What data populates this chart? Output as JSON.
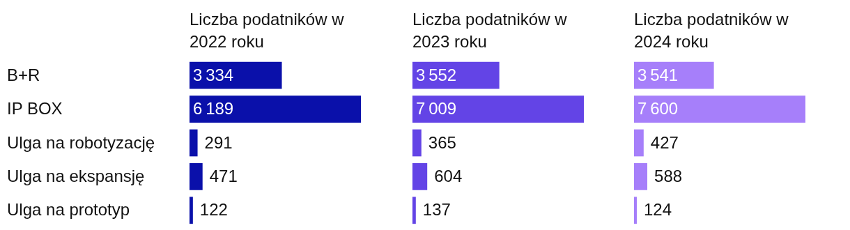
{
  "chart_data": [
    {
      "type": "bar",
      "orientation": "horizontal",
      "title": "Liczba podatników w 2022 roku",
      "categories": [
        "B+R",
        "IP BOX",
        "Ulga na robotyzację",
        "Ulga na ekspansję",
        "Ulga na prototyp"
      ],
      "values": [
        3334,
        6189,
        291,
        471,
        122
      ],
      "color": "#0a10aa",
      "data_labels": true,
      "tick_labels": "y"
    },
    {
      "type": "bar",
      "orientation": "horizontal",
      "title": "Liczba podatników w 2023 roku",
      "categories": [
        null,
        null,
        null,
        null,
        null
      ],
      "values": [
        3552,
        7009,
        365,
        604,
        137
      ],
      "color": "#6344e6",
      "data_labels": true,
      "tick_labels": false
    },
    {
      "type": "bar",
      "orientation": "horizontal",
      "title": "Liczba podatników w 2024 roku",
      "categories": [
        null,
        null,
        null,
        null,
        null
      ],
      "values": [
        3541,
        7600,
        427,
        588,
        124
      ],
      "color": "#a67ffa",
      "data_labels": true,
      "tick_labels": false
    }
  ]
}
